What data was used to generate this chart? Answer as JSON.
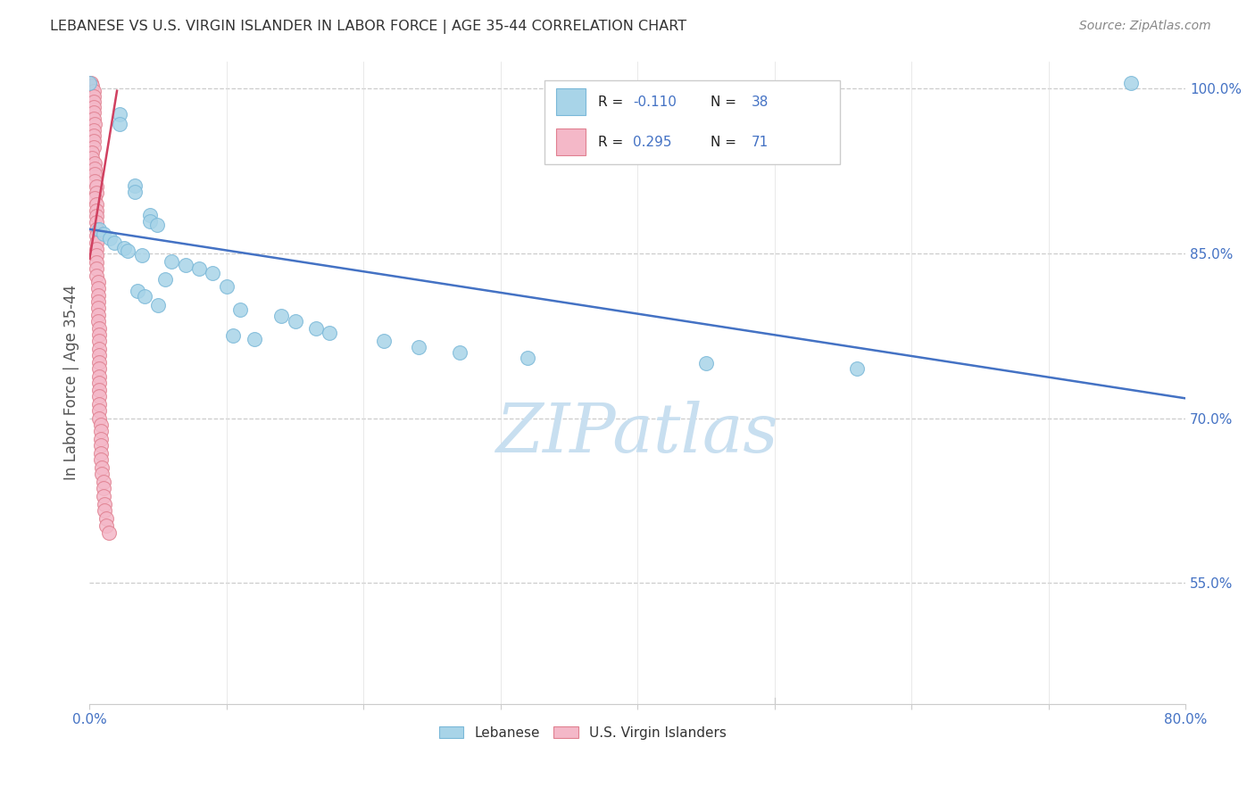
{
  "title": "LEBANESE VS U.S. VIRGIN ISLANDER IN LABOR FORCE | AGE 35-44 CORRELATION CHART",
  "source": "Source: ZipAtlas.com",
  "ylabel": "In Labor Force | Age 35-44",
  "xlim": [
    0.0,
    0.8
  ],
  "ylim": [
    0.44,
    1.025
  ],
  "ytick_positions": [
    0.55,
    0.7,
    0.85,
    1.0
  ],
  "ytick_labels": [
    "55.0%",
    "70.0%",
    "85.0%",
    "100.0%"
  ],
  "watermark": "ZIPatlas",
  "blue_scatter": [
    [
      0.0,
      1.005
    ],
    [
      0.022,
      0.977
    ],
    [
      0.022,
      0.968
    ],
    [
      0.033,
      0.912
    ],
    [
      0.033,
      0.906
    ],
    [
      0.007,
      0.872
    ],
    [
      0.01,
      0.868
    ],
    [
      0.015,
      0.864
    ],
    [
      0.018,
      0.86
    ],
    [
      0.025,
      0.855
    ],
    [
      0.028,
      0.852
    ],
    [
      0.038,
      0.848
    ],
    [
      0.044,
      0.885
    ],
    [
      0.044,
      0.879
    ],
    [
      0.049,
      0.876
    ],
    [
      0.06,
      0.843
    ],
    [
      0.07,
      0.839
    ],
    [
      0.08,
      0.836
    ],
    [
      0.09,
      0.832
    ],
    [
      0.055,
      0.826
    ],
    [
      0.1,
      0.82
    ],
    [
      0.035,
      0.816
    ],
    [
      0.04,
      0.811
    ],
    [
      0.05,
      0.803
    ],
    [
      0.11,
      0.799
    ],
    [
      0.14,
      0.793
    ],
    [
      0.15,
      0.788
    ],
    [
      0.165,
      0.782
    ],
    [
      0.175,
      0.778
    ],
    [
      0.105,
      0.775
    ],
    [
      0.12,
      0.772
    ],
    [
      0.215,
      0.77
    ],
    [
      0.24,
      0.765
    ],
    [
      0.27,
      0.76
    ],
    [
      0.32,
      0.755
    ],
    [
      0.45,
      0.75
    ],
    [
      0.56,
      0.745
    ],
    [
      0.76,
      1.005
    ]
  ],
  "blue_line_x": [
    0.0,
    0.8
  ],
  "blue_line_y": [
    0.872,
    0.718
  ],
  "pink_scatter": [
    [
      0.001,
      1.005
    ],
    [
      0.002,
      1.003
    ],
    [
      0.003,
      0.998
    ],
    [
      0.003,
      0.993
    ],
    [
      0.003,
      0.988
    ],
    [
      0.003,
      0.983
    ],
    [
      0.003,
      0.978
    ],
    [
      0.003,
      0.973
    ],
    [
      0.004,
      0.968
    ],
    [
      0.003,
      0.962
    ],
    [
      0.003,
      0.957
    ],
    [
      0.003,
      0.952
    ],
    [
      0.003,
      0.947
    ],
    [
      0.002,
      0.942
    ],
    [
      0.002,
      0.937
    ],
    [
      0.004,
      0.932
    ],
    [
      0.004,
      0.927
    ],
    [
      0.004,
      0.922
    ],
    [
      0.004,
      0.916
    ],
    [
      0.005,
      0.911
    ],
    [
      0.005,
      0.905
    ],
    [
      0.004,
      0.9
    ],
    [
      0.005,
      0.895
    ],
    [
      0.005,
      0.889
    ],
    [
      0.005,
      0.884
    ],
    [
      0.005,
      0.878
    ],
    [
      0.005,
      0.872
    ],
    [
      0.005,
      0.866
    ],
    [
      0.005,
      0.86
    ],
    [
      0.005,
      0.854
    ],
    [
      0.005,
      0.848
    ],
    [
      0.005,
      0.842
    ],
    [
      0.005,
      0.836
    ],
    [
      0.005,
      0.83
    ],
    [
      0.006,
      0.824
    ],
    [
      0.006,
      0.818
    ],
    [
      0.006,
      0.812
    ],
    [
      0.006,
      0.806
    ],
    [
      0.006,
      0.8
    ],
    [
      0.006,
      0.794
    ],
    [
      0.006,
      0.788
    ],
    [
      0.007,
      0.782
    ],
    [
      0.007,
      0.776
    ],
    [
      0.007,
      0.77
    ],
    [
      0.007,
      0.763
    ],
    [
      0.007,
      0.757
    ],
    [
      0.007,
      0.751
    ],
    [
      0.007,
      0.745
    ],
    [
      0.007,
      0.738
    ],
    [
      0.007,
      0.732
    ],
    [
      0.007,
      0.726
    ],
    [
      0.007,
      0.72
    ],
    [
      0.007,
      0.713
    ],
    [
      0.007,
      0.707
    ],
    [
      0.007,
      0.7
    ],
    [
      0.008,
      0.694
    ],
    [
      0.008,
      0.688
    ],
    [
      0.008,
      0.681
    ],
    [
      0.008,
      0.675
    ],
    [
      0.008,
      0.668
    ],
    [
      0.008,
      0.662
    ],
    [
      0.009,
      0.655
    ],
    [
      0.009,
      0.649
    ],
    [
      0.01,
      0.642
    ],
    [
      0.01,
      0.636
    ],
    [
      0.01,
      0.629
    ],
    [
      0.011,
      0.622
    ],
    [
      0.011,
      0.616
    ],
    [
      0.012,
      0.609
    ],
    [
      0.012,
      0.602
    ],
    [
      0.014,
      0.596
    ]
  ],
  "pink_line_x": [
    0.0,
    0.02
  ],
  "pink_line_y": [
    0.845,
    0.998
  ],
  "blue_color": "#A8D4E8",
  "blue_edge": "#7AB8D8",
  "pink_color": "#F4B8C8",
  "pink_edge": "#E08090",
  "blue_line_color": "#4472C4",
  "pink_line_color": "#D04060",
  "background_color": "#FFFFFF",
  "grid_color": "#CCCCCC",
  "title_color": "#333333",
  "axis_label_color": "#4472C4",
  "watermark_color": "#C8DFF0",
  "text_black": "#222222",
  "figsize": [
    14.06,
    8.92
  ],
  "dpi": 100
}
